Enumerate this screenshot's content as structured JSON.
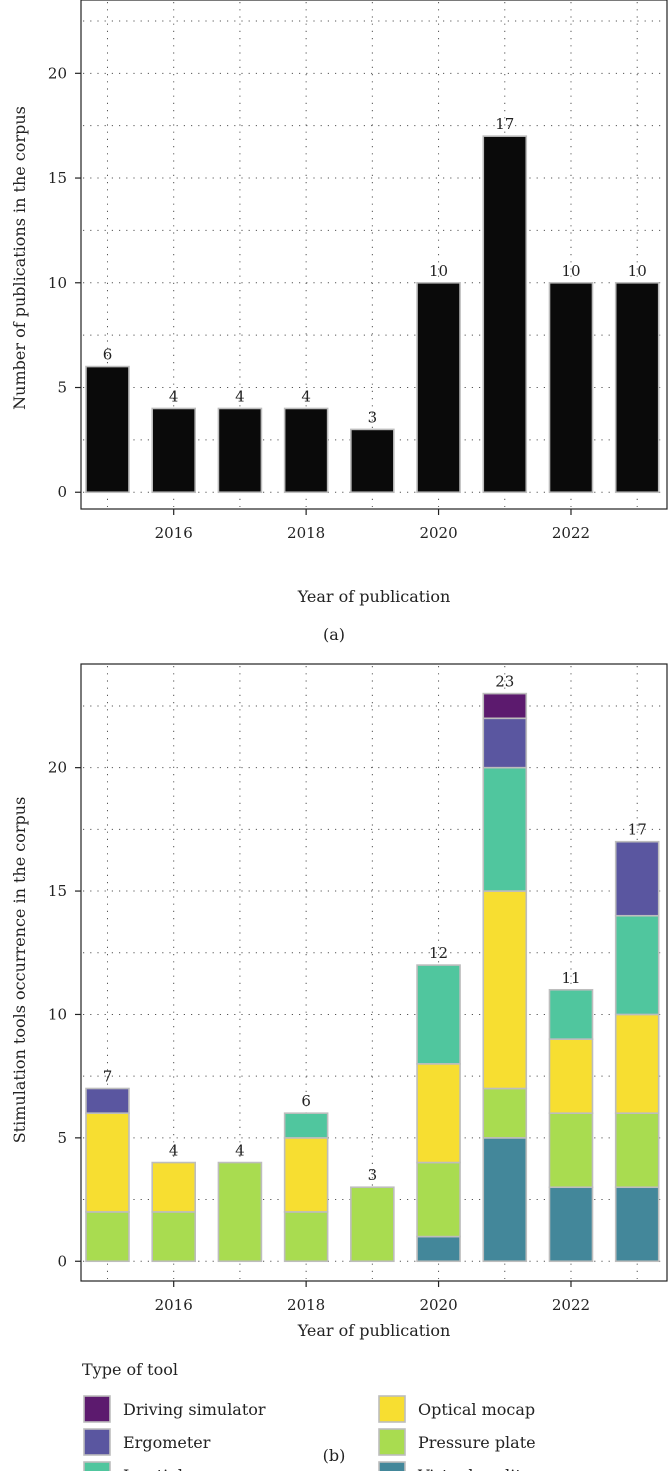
{
  "chart_data": [
    {
      "type": "bar",
      "panel_label": "(a)",
      "xlabel": "Year of publication",
      "ylabel": "Number of publications in the corpus",
      "x": [
        2015,
        2016,
        2017,
        2018,
        2019,
        2020,
        2021,
        2022,
        2023
      ],
      "values": [
        6,
        4,
        4,
        4,
        3,
        10,
        17,
        10,
        10
      ],
      "xticks": [
        2016,
        2018,
        2020,
        2022
      ],
      "yticks": [
        0,
        5,
        10,
        15,
        20
      ],
      "xlim": [
        2014.6,
        2023.45
      ],
      "ylim": [
        -0.8,
        23.5
      ],
      "bar_color": "#0a0a0a",
      "grid": true
    },
    {
      "type": "bar",
      "stacked": true,
      "panel_label": "(b)",
      "xlabel": "Year of publication",
      "ylabel": "Stimulation tools occurrence in the corpus",
      "x": [
        2015,
        2016,
        2017,
        2018,
        2019,
        2020,
        2021,
        2022,
        2023
      ],
      "totals": [
        7,
        4,
        4,
        6,
        3,
        12,
        23,
        11,
        17
      ],
      "xticks": [
        2016,
        2018,
        2020,
        2022
      ],
      "yticks": [
        0,
        5,
        10,
        15,
        20
      ],
      "xlim": [
        2014.6,
        2023.45
      ],
      "ylim": [
        -0.8,
        24.2
      ],
      "grid": true,
      "legend_title": "Type of tool",
      "series": [
        {
          "name": "Virtual reality",
          "color": "#43879a",
          "values": [
            0,
            0,
            0,
            0,
            0,
            1,
            5,
            3,
            3
          ]
        },
        {
          "name": "Pressure plate",
          "color": "#a9dc50",
          "values": [
            2,
            2,
            4,
            2,
            3,
            3,
            2,
            3,
            3
          ]
        },
        {
          "name": "Optical mocap",
          "color": "#f7de31",
          "values": [
            4,
            2,
            0,
            3,
            0,
            4,
            8,
            3,
            4
          ]
        },
        {
          "name": "Inertial mocap",
          "color": "#50c69e",
          "values": [
            0,
            0,
            0,
            1,
            0,
            4,
            5,
            2,
            4
          ]
        },
        {
          "name": "Ergometer",
          "color": "#5a56a0",
          "values": [
            1,
            0,
            0,
            0,
            0,
            0,
            2,
            0,
            3
          ]
        },
        {
          "name": "Driving simulator",
          "color": "#5c1a6e",
          "values": [
            0,
            0,
            0,
            0,
            0,
            0,
            1,
            0,
            0
          ]
        }
      ],
      "legend_order": [
        "Driving simulator",
        "Optical mocap",
        "Ergometer",
        "Pressure plate",
        "Inertial mocap",
        "Virtual reality"
      ]
    }
  ]
}
